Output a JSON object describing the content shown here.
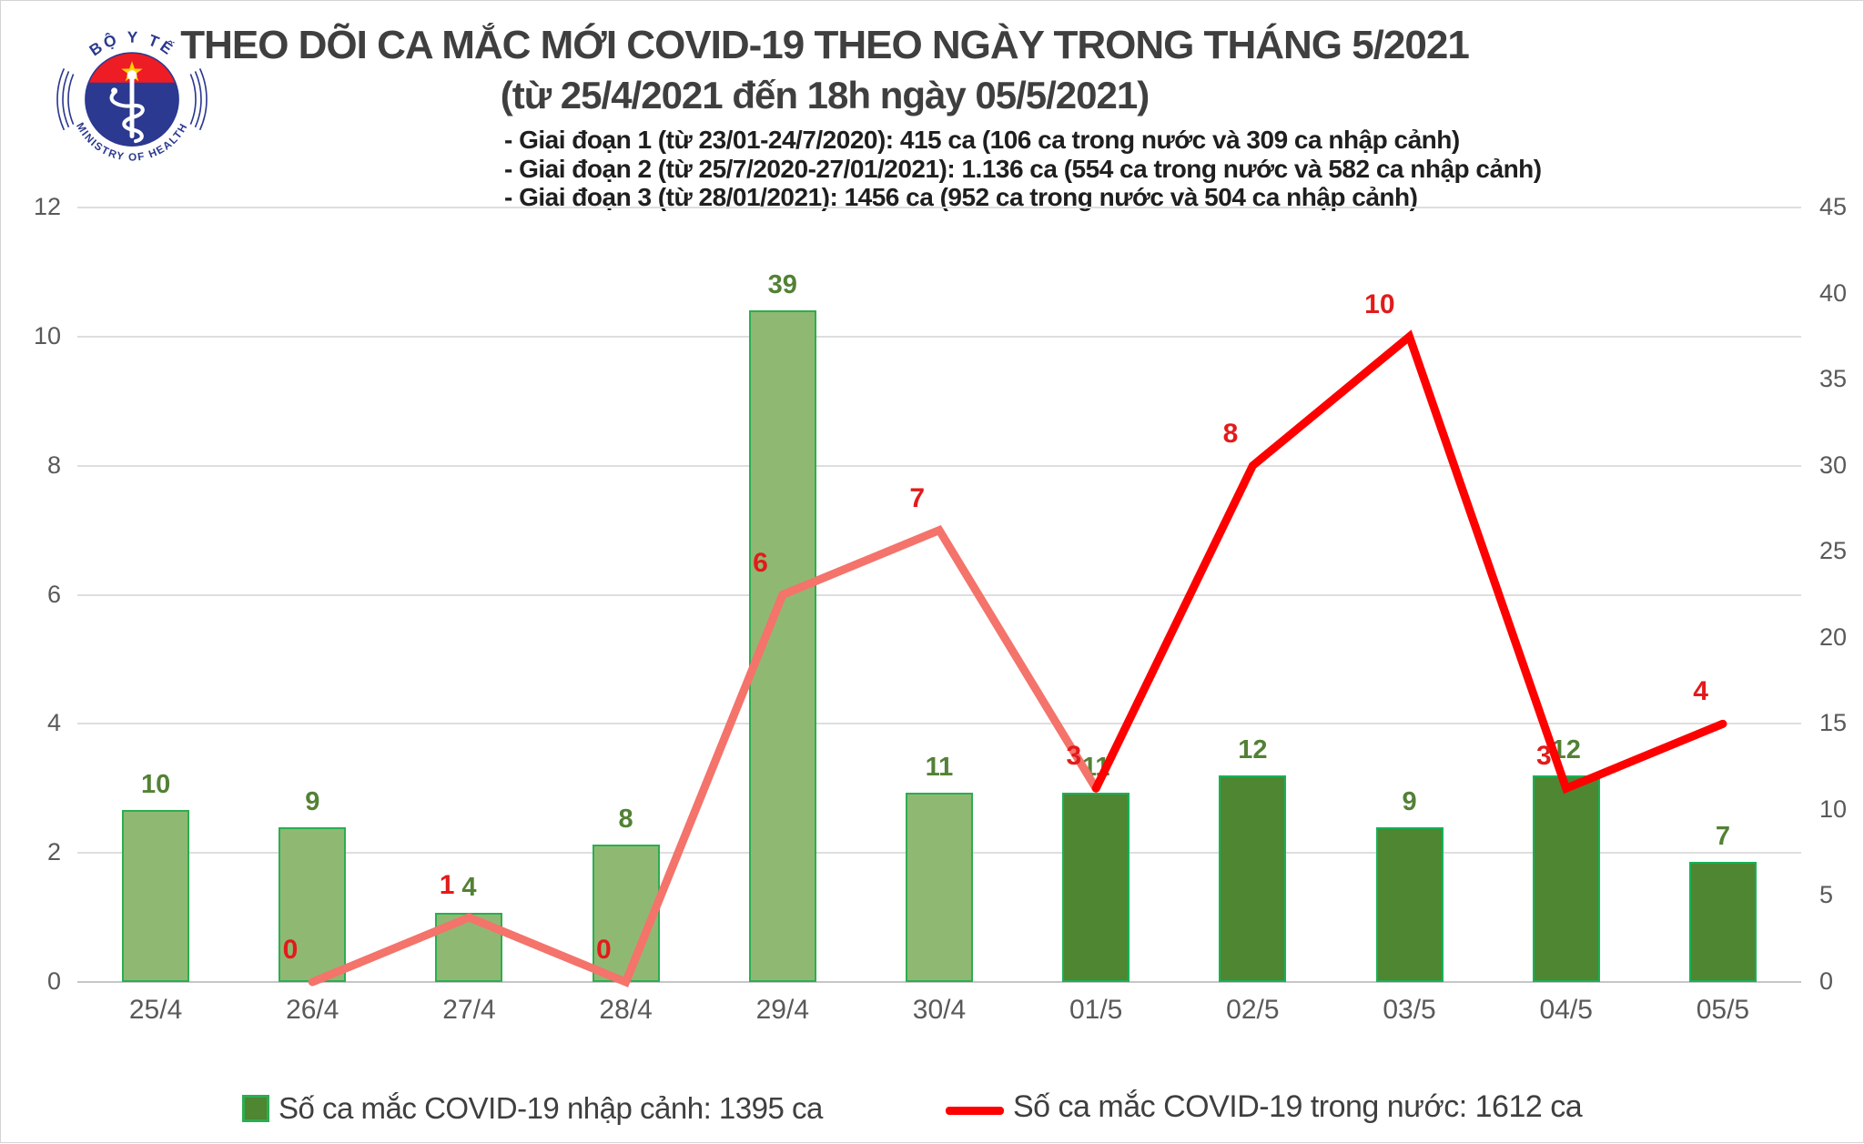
{
  "header": {
    "title_line1": "THEO DÕI CA MẮC MỚI COVID-19 THEO NGÀY TRONG THÁNG 5/2021",
    "title_line2": "(từ 25/4/2021 đến 18h ngày 05/5/2021)",
    "annotations": [
      "- Giai đoạn 1 (từ 23/01-24/7/2020): 415 ca (106 ca trong nước và 309 ca nhập cảnh)",
      "- Giai đoạn 2 (từ 25/7/2020-27/01/2021): 1.136 ca (554 ca trong nước và 582 ca nhập cảnh)",
      "- Giai đoạn 3 (từ 28/01/2021): 1456 ca (952 ca trong nước và 504 ca nhập cảnh)"
    ]
  },
  "logo": {
    "top_text": "BỘ Y TẾ",
    "bottom_text": "MINISTRY OF HEALTH",
    "blue": "#2b3990",
    "red": "#ee1c25",
    "star_yellow": "#ffd200"
  },
  "legend": [
    {
      "type": "bar",
      "label": "Số ca mắc COVID-19 nhập cảnh: 1395 ca",
      "fill": "#4e8632",
      "border": "#2bae51"
    },
    {
      "type": "line",
      "label": "Số ca mắc COVID-19 trong nước: 1612 ca",
      "color": "#fe0000"
    }
  ],
  "chart_data": {
    "type": "bar+line",
    "title": "THEO DÕI CA MẮC MỚI COVID-19 THEO NGÀY TRONG THÁNG 5/2021 (từ 25/4/2021 đến 18h ngày 05/5/2021)",
    "categories": [
      "25/4",
      "26/4",
      "27/4",
      "28/4",
      "29/4",
      "30/4",
      "01/5",
      "02/5",
      "03/5",
      "04/5",
      "05/5"
    ],
    "series": [
      {
        "name": "Số ca mắc COVID-19 nhập cảnh",
        "type": "bar",
        "axis": "right",
        "values": [
          10,
          9,
          4,
          8,
          39,
          11,
          11,
          12,
          9,
          12,
          7
        ],
        "colors": {
          "light_fill": "#8fb973",
          "light_border": "#2bae51",
          "dark_fill": "#4e8632",
          "dark_border": "#17b256",
          "dark_from_index": 6
        },
        "label_color": "#538135"
      },
      {
        "name": "Số ca mắc COVID-19 trong nước",
        "type": "line",
        "axis": "left",
        "start_category_index": 1,
        "values": [
          0,
          1,
          0,
          6,
          7,
          3,
          8,
          10,
          3,
          4
        ],
        "colors": {
          "early": "#f4736b",
          "late": "#fe0000",
          "late_from_point": 5
        },
        "label_color": "#e21b1b"
      }
    ],
    "left_axis": {
      "min": 0,
      "max": 12,
      "step": 2
    },
    "right_axis": {
      "min": 0,
      "max": 45,
      "step": 5
    },
    "grid": {
      "on": true,
      "color": "#dedede",
      "zero_color": "#c6c6c6",
      "tick_color": "#595959"
    },
    "legend_position": "bottom"
  }
}
